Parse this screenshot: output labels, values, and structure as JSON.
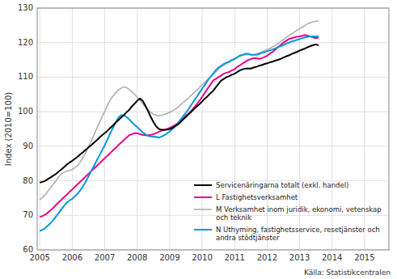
{
  "chart_data": {
    "type": "line",
    "ylabel": "Index (2010=100)",
    "annotations": [
      "Källa: Statistikcentralen"
    ],
    "xlim": [
      2004.92,
      2015.75
    ],
    "ylim": [
      60,
      130
    ],
    "xticks": [
      2005,
      2006,
      2007,
      2008,
      2009,
      2010,
      2011,
      2012,
      2013,
      2014,
      2015
    ],
    "yticks": [
      60,
      70,
      80,
      90,
      100,
      110,
      120,
      130
    ],
    "grid": true,
    "legend": "right",
    "x": [
      2005,
      2005.083333333333,
      2005.166666666667,
      2005.25,
      2005.333333333333,
      2005.416666666667,
      2005.5,
      2005.583333333333,
      2005.666666666667,
      2005.75,
      2005.833333333333,
      2005.916666666667,
      2006,
      2006.083333333333,
      2006.166666666667,
      2006.25,
      2006.333333333333,
      2006.416666666667,
      2006.5,
      2006.583333333333,
      2006.666666666667,
      2006.75,
      2006.833333333333,
      2006.916666666667,
      2007,
      2007.083333333333,
      2007.166666666667,
      2007.25,
      2007.333333333333,
      2007.416666666667,
      2007.5,
      2007.583333333333,
      2007.666666666667,
      2007.75,
      2007.833333333333,
      2007.916666666667,
      2008,
      2008.083333333333,
      2008.166666666667,
      2008.25,
      2008.333333333333,
      2008.416666666667,
      2008.5,
      2008.583333333333,
      2008.666666666667,
      2008.75,
      2008.833333333333,
      2008.916666666667,
      2009,
      2009.083333333333,
      2009.166666666667,
      2009.25,
      2009.333333333333,
      2009.416666666667,
      2009.5,
      2009.583333333333,
      2009.666666666667,
      2009.75,
      2009.833333333333,
      2009.916666666667,
      2010,
      2010.083333333333,
      2010.166666666667,
      2010.25,
      2010.333333333333,
      2010.416666666667,
      2010.5,
      2010.583333333333,
      2010.666666666667,
      2010.75,
      2010.833333333333,
      2010.916666666667,
      2011,
      2011.083333333333,
      2011.166666666667,
      2011.25,
      2011.333333333333,
      2011.416666666667,
      2011.5,
      2011.583333333333,
      2011.666666666667,
      2011.75,
      2011.833333333333,
      2011.916666666667,
      2012,
      2012.083333333333,
      2012.166666666667,
      2012.25,
      2012.333333333333,
      2012.416666666667,
      2012.5,
      2012.583333333333,
      2012.666666666667,
      2012.75,
      2012.833333333333,
      2012.916666666667,
      2013,
      2013.083333333333,
      2013.166666666667,
      2013.25,
      2013.333333333333,
      2013.416666666667,
      2013.5,
      2013.583333333333
    ],
    "series": [
      {
        "name": "Servicenäringarna totalt  (exkl. handel)",
        "color": "#000000",
        "values": [
          79.5,
          79.7,
          80.0,
          80.5,
          81.0,
          81.5,
          82.0,
          82.7,
          83.3,
          84.0,
          84.7,
          85.3,
          85.8,
          86.4,
          87.0,
          87.7,
          88.3,
          89.0,
          89.7,
          90.3,
          91.0,
          91.7,
          92.5,
          93.2,
          93.8,
          94.5,
          95.3,
          96.0,
          96.8,
          97.5,
          98.3,
          99.0,
          99.8,
          100.5,
          101.5,
          102.3,
          103.2,
          103.8,
          103.2,
          101.8,
          100.2,
          98.5,
          97.0,
          95.8,
          95.0,
          94.8,
          94.7,
          94.8,
          95.0,
          95.3,
          95.8,
          96.3,
          97.0,
          97.8,
          98.5,
          99.3,
          100.0,
          100.8,
          101.5,
          102.2,
          103.0,
          103.8,
          104.5,
          105.3,
          106.0,
          107.0,
          108.0,
          109.0,
          109.5,
          110.0,
          110.3,
          110.7,
          111.0,
          111.5,
          112.0,
          112.3,
          112.5,
          112.5,
          112.5,
          112.8,
          113.0,
          113.3,
          113.5,
          113.8,
          114.0,
          114.3,
          114.5,
          114.8,
          115.0,
          115.3,
          115.7,
          116.0,
          116.3,
          116.7,
          117.0,
          117.3,
          117.7,
          118.0,
          118.3,
          118.7,
          119.0,
          119.3,
          119.5,
          119.2
        ]
      },
      {
        "name": "L Fastighetsverksamhet",
        "color": "#ee0088",
        "values": [
          69.5,
          69.8,
          70.2,
          70.8,
          71.5,
          72.2,
          73.0,
          73.8,
          74.5,
          75.3,
          76.0,
          76.8,
          77.5,
          78.3,
          79.0,
          79.8,
          80.5,
          81.3,
          82.0,
          82.8,
          83.5,
          84.3,
          85.0,
          85.8,
          86.5,
          87.3,
          88.0,
          88.8,
          89.5,
          90.3,
          91.0,
          91.8,
          92.5,
          93.2,
          93.5,
          93.8,
          93.8,
          93.5,
          93.3,
          93.2,
          93.2,
          93.3,
          93.5,
          93.8,
          94.2,
          94.5,
          94.8,
          95.0,
          95.3,
          95.7,
          96.2,
          96.7,
          97.3,
          98.0,
          98.8,
          99.5,
          100.3,
          101.2,
          102.2,
          103.2,
          104.3,
          105.5,
          106.7,
          107.8,
          109.0,
          109.5,
          110.0,
          110.5,
          111.0,
          111.3,
          111.5,
          112.0,
          112.3,
          113.0,
          113.5,
          114.0,
          114.5,
          115.0,
          115.2,
          115.5,
          115.5,
          115.3,
          115.5,
          115.8,
          116.2,
          116.8,
          117.3,
          118.0,
          118.7,
          119.3,
          120.0,
          120.5,
          121.0,
          121.3,
          121.5,
          121.7,
          121.8,
          122.0,
          122.2,
          122.0,
          121.8,
          121.5,
          121.3,
          121.5
        ]
      },
      {
        "name": "M Verksamhet inom juridik, ekonomi, vetenskap\noch teknik",
        "color": "#b0b0b0",
        "values": [
          74.5,
          75.2,
          76.0,
          77.0,
          78.0,
          79.0,
          80.0,
          81.2,
          82.0,
          82.5,
          82.8,
          83.0,
          83.3,
          83.8,
          84.5,
          85.5,
          86.8,
          88.2,
          89.8,
          91.5,
          93.2,
          95.0,
          96.8,
          98.5,
          100.2,
          101.8,
          103.3,
          104.5,
          105.5,
          106.3,
          106.8,
          107.2,
          107.0,
          106.5,
          105.8,
          105.0,
          104.2,
          103.3,
          102.3,
          101.3,
          100.5,
          99.8,
          99.3,
          99.0,
          98.8,
          99.0,
          99.2,
          99.5,
          99.8,
          100.2,
          100.7,
          101.3,
          102.0,
          102.7,
          103.3,
          104.0,
          104.8,
          105.5,
          106.2,
          107.0,
          107.8,
          108.5,
          109.3,
          110.0,
          110.8,
          111.5,
          112.2,
          113.0,
          113.5,
          114.0,
          114.3,
          114.8,
          115.2,
          115.7,
          116.0,
          116.3,
          116.5,
          116.5,
          116.5,
          116.5,
          116.7,
          117.0,
          117.3,
          117.7,
          118.0,
          118.3,
          118.8,
          119.2,
          119.7,
          120.3,
          120.8,
          121.5,
          122.0,
          122.5,
          123.0,
          123.5,
          124.0,
          124.5,
          125.0,
          125.5,
          125.8,
          126.0,
          126.2,
          126.3
        ]
      },
      {
        "name": "N Uthyming, fastighetsservice, resetjänster och\nandra stödtjänster",
        "color": "#0099dd",
        "values": [
          65.5,
          65.8,
          66.3,
          67.0,
          67.8,
          68.7,
          69.7,
          70.7,
          71.8,
          72.8,
          73.7,
          74.3,
          74.8,
          75.5,
          76.3,
          77.3,
          78.5,
          79.8,
          81.3,
          82.8,
          84.3,
          85.8,
          87.3,
          88.8,
          90.3,
          92.0,
          93.7,
          95.3,
          96.8,
          98.3,
          99.0,
          99.0,
          98.5,
          97.8,
          97.0,
          96.2,
          95.5,
          94.8,
          94.0,
          93.5,
          93.0,
          92.8,
          92.8,
          92.7,
          92.5,
          92.8,
          93.2,
          93.7,
          94.3,
          95.0,
          95.8,
          96.7,
          97.7,
          98.7,
          99.7,
          100.8,
          102.0,
          103.2,
          104.3,
          105.5,
          106.7,
          107.8,
          109.0,
          110.0,
          111.0,
          112.0,
          112.8,
          113.3,
          113.8,
          114.2,
          114.5,
          115.0,
          115.3,
          115.8,
          116.3,
          116.5,
          116.8,
          116.8,
          116.5,
          116.5,
          116.5,
          116.7,
          117.0,
          117.2,
          117.5,
          117.8,
          118.0,
          118.3,
          118.7,
          119.0,
          119.3,
          119.7,
          120.0,
          120.3,
          120.5,
          120.8,
          121.0,
          121.3,
          121.5,
          121.7,
          121.8,
          121.8,
          121.8,
          121.8
        ]
      }
    ]
  }
}
